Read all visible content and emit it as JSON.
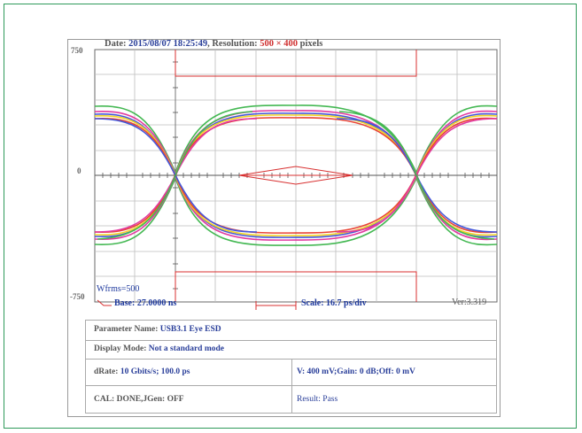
{
  "header": {
    "date_label": "Date:",
    "date_value": "2015/08/07 18:25:49",
    "sep": ",",
    "resolution_label": "Resolution:",
    "resolution_value": "500 × 400",
    "pixels_label": "pixels"
  },
  "axes": {
    "y_top": "750",
    "y_mid": "0",
    "y_bottom": "-750"
  },
  "plot": {
    "wfrms": "Wfrms=500",
    "base": "Base: 27.0000 ns",
    "scale": "Scale: 16.7 ps/div",
    "version": "Ver:3.319"
  },
  "info": {
    "param_label": "Parameter Name:",
    "param_value": "USB3.1 Eye ESD",
    "display_label": "Display Mode:",
    "display_value": "Not a standard mode",
    "drate_label": "dRate:",
    "drate_value": "10",
    "drate_rest": "Gbits/s; 100.0 ps",
    "v_text": "V: 400 mV;Gain: 0 dB;Off: 0 mV",
    "cal_text": "CAL: DONE,JGen: OFF",
    "result_text": "Result: Pass"
  },
  "colors": {
    "frame": "#2e9a5a",
    "accent_blue": "#2a3f9a",
    "accent_red": "#d03030",
    "trace_green": "#3bb54a",
    "trace_magenta": "#e0309a",
    "trace_blue": "#3a4fd8",
    "trace_yellow": "#f2d21a",
    "trace_red": "#e83a2a"
  }
}
